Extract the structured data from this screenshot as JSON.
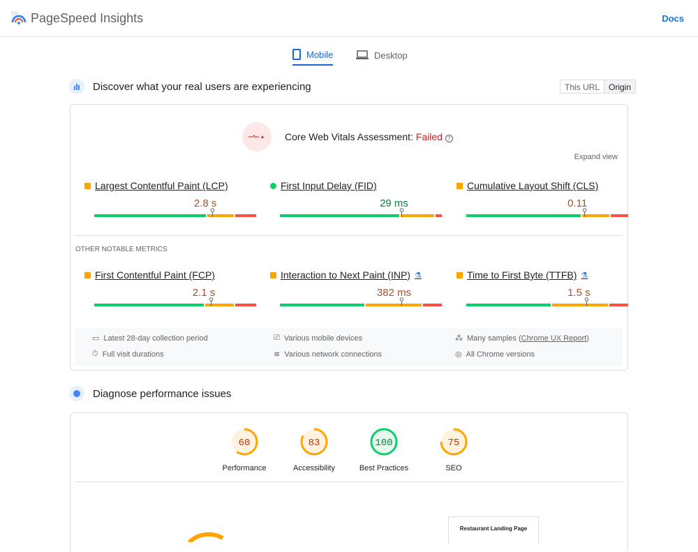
{
  "header": {
    "title": "PageSpeed Insights",
    "docs": "Docs"
  },
  "tabs": [
    {
      "label": "Mobile",
      "active": true,
      "icon": "smartphone-icon"
    },
    {
      "label": "Desktop",
      "active": false,
      "icon": "laptop-icon"
    }
  ],
  "field": {
    "title": "Discover what your real users are experiencing",
    "toggle": [
      "This URL",
      "Origin"
    ],
    "toggle_selected": "Origin",
    "assessment_label": "Core Web Vitals Assessment: ",
    "assessment_status": "Failed",
    "expand": "Expand view",
    "other_label": "OTHER NOTABLE METRICS",
    "metrics": [
      {
        "name": "Largest Contentful Paint (LCP)",
        "value": "2.8 s",
        "rating": "needs-improvement",
        "dist": [
          70,
          17,
          13
        ],
        "marker": 73,
        "experimental": false
      },
      {
        "name": "First Input Delay (FID)",
        "value": "29 ms",
        "rating": "good",
        "dist": [
          75,
          21,
          4
        ],
        "marker": 75,
        "experimental": false
      },
      {
        "name": "Cumulative Layout Shift (CLS)",
        "value": "0.11",
        "rating": "needs-improvement",
        "dist": [
          72,
          17,
          11
        ],
        "marker": 73,
        "experimental": false
      },
      {
        "name": "First Contentful Paint (FCP)",
        "value": "2.1 s",
        "rating": "needs-improvement",
        "dist": [
          69,
          18,
          13
        ],
        "marker": 72,
        "experimental": false
      },
      {
        "name": "Interaction to Next Paint (INP)",
        "value": "382 ms",
        "rating": "needs-improvement",
        "dist": [
          53,
          35,
          12
        ],
        "marker": 75,
        "experimental": true
      },
      {
        "name": "Time to First Byte (TTFB)",
        "value": "1.5 s",
        "rating": "needs-improvement",
        "dist": [
          53,
          35,
          12
        ],
        "marker": 74,
        "experimental": true
      }
    ],
    "notes": [
      {
        "icon": "calendar-icon",
        "text": "Latest 28-day collection period"
      },
      {
        "icon": "devices-icon",
        "text": "Various mobile devices"
      },
      {
        "icon": "samples-icon",
        "text": "Many samples (",
        "link": "Chrome UX Report",
        "after": ")"
      },
      {
        "icon": "timer-icon",
        "text": "Full visit durations"
      },
      {
        "icon": "wifi-icon",
        "text": "Various network connections"
      },
      {
        "icon": "chrome-icon",
        "text": "All Chrome versions"
      }
    ]
  },
  "lab": {
    "title": "Diagnose performance issues",
    "scores": [
      {
        "label": "Performance",
        "score": 60
      },
      {
        "label": "Accessibility",
        "score": 83
      },
      {
        "label": "Best Practices",
        "score": 100
      },
      {
        "label": "SEO",
        "score": 75
      }
    ],
    "screenshot_title": "Restaurant Landing Page"
  },
  "colors": {
    "good": "#0cce6b",
    "average": "#ffa400",
    "poor": "#ff4e42",
    "accent": "#1a73e8",
    "failed": "#c5221f"
  }
}
